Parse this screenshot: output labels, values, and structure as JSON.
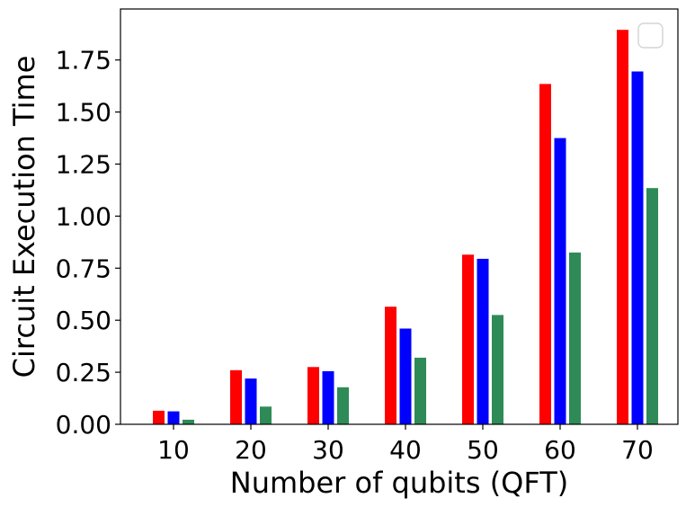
{
  "chart_data": {
    "type": "bar",
    "title": "",
    "xlabel": "Number of qubits (QFT)",
    "ylabel": "Circuit Execution Time",
    "categories": [
      "10",
      "20",
      "30",
      "40",
      "50",
      "60",
      "70"
    ],
    "series": [
      {
        "color": "#ff0000",
        "values": [
          0.065,
          0.26,
          0.275,
          0.565,
          0.815,
          1.635,
          1.895
        ]
      },
      {
        "color": "#0000ff",
        "values": [
          0.062,
          0.22,
          0.255,
          0.46,
          0.795,
          1.375,
          1.695
        ]
      },
      {
        "color": "#2e8b57",
        "values": [
          0.022,
          0.085,
          0.178,
          0.32,
          0.525,
          0.825,
          1.135
        ]
      }
    ],
    "yticks": [
      "0.00",
      "0.25",
      "0.50",
      "0.75",
      "1.00",
      "1.25",
      "1.50",
      "1.75"
    ],
    "ylim": [
      0,
      1.995
    ],
    "grid": false,
    "legend": "top-right (empty)"
  }
}
